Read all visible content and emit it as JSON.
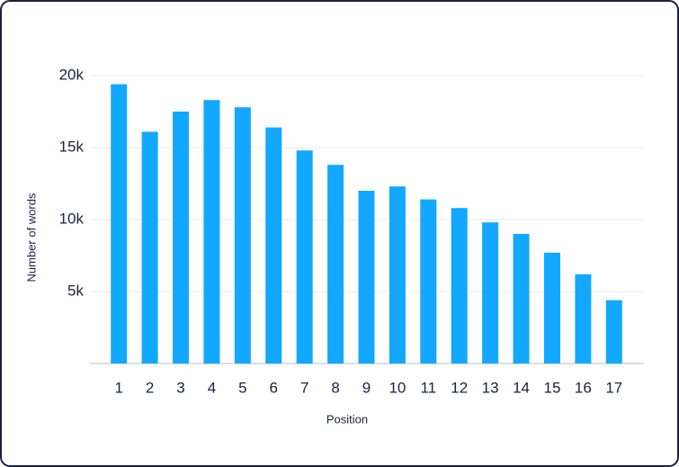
{
  "chart_data": {
    "type": "bar",
    "x_label": "Position",
    "y_label": "Number of words",
    "categories": [
      "1",
      "2",
      "3",
      "4",
      "5",
      "6",
      "7",
      "8",
      "9",
      "10",
      "11",
      "12",
      "13",
      "14",
      "15",
      "16",
      "17"
    ],
    "values": [
      19400,
      16100,
      17500,
      18300,
      17800,
      16400,
      14800,
      13800,
      12000,
      12300,
      11400,
      10800,
      9800,
      9000,
      7700,
      6200,
      4400
    ],
    "color": "#12a8ff",
    "ylim": [
      0,
      20000
    ],
    "yticks": [
      {
        "value": 5000,
        "label": "5k"
      },
      {
        "value": 10000,
        "label": "10k"
      },
      {
        "value": 15000,
        "label": "15k"
      },
      {
        "value": 20000,
        "label": "20k"
      }
    ],
    "grid": true
  }
}
